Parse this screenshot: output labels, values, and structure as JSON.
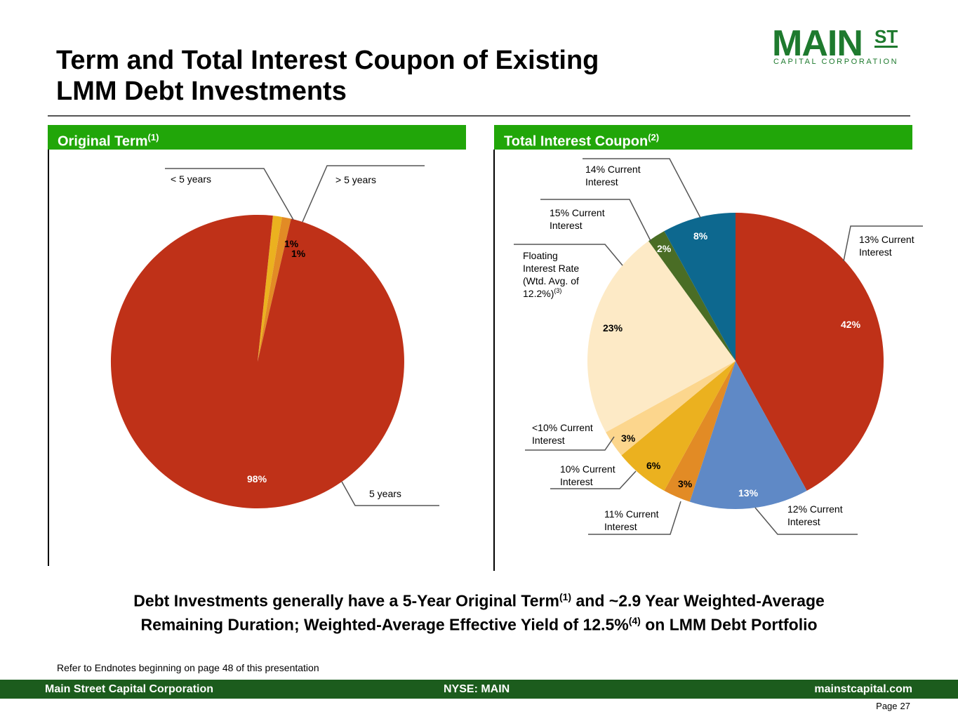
{
  "header": {
    "title_line1": "Term and Total Interest Coupon of Existing",
    "title_line2": "LMM Debt Investments"
  },
  "logo": {
    "main": "MAIN",
    "st": "ST",
    "sub": "CAPITAL CORPORATION"
  },
  "panels": {
    "left_title": "Original Term",
    "left_sup": "(1)",
    "right_title": "Total Interest Coupon",
    "right_sup": "(2)"
  },
  "colors": {
    "brand_green": "#21a609",
    "footer_green": "#1c5c1d",
    "red": "#bf3118",
    "gold": "#ebb11f",
    "orange": "#e28b25",
    "blue": "#5f89c6",
    "light_yellow": "#fcd68d",
    "cream": "#fdeac6",
    "olive": "#4a6d25",
    "teal": "#0d688f"
  },
  "chart_data": [
    {
      "type": "pie",
      "title": "Original Term",
      "slices": [
        {
          "label": "< 5 years",
          "value": 1,
          "data_label": "1%",
          "color": "#ebb11f"
        },
        {
          "label": "> 5 years",
          "value": 1,
          "data_label": "1%",
          "color": "#e28b25"
        },
        {
          "label": "5 years",
          "value": 98,
          "data_label": "98%",
          "color": "#bf3118"
        }
      ]
    },
    {
      "type": "pie",
      "title": "Total Interest Coupon",
      "slices": [
        {
          "label": "13% Current Interest",
          "value": 42,
          "data_label": "42%",
          "color": "#bf3118"
        },
        {
          "label": "12% Current Interest",
          "value": 13,
          "data_label": "13%",
          "color": "#5f89c6"
        },
        {
          "label": "11% Current Interest",
          "value": 3,
          "data_label": "3%",
          "color": "#e28b25"
        },
        {
          "label": "10% Current Interest",
          "value": 6,
          "data_label": "6%",
          "color": "#ebb11f"
        },
        {
          "label": "<10% Current Interest",
          "value": 3,
          "data_label": "3%",
          "color": "#fcd68d"
        },
        {
          "label": "Floating Interest Rate (Wtd. Avg. of 12.2%)(3)",
          "value": 23,
          "data_label": "23%",
          "color": "#fdeac6"
        },
        {
          "label": "15% Current Interest",
          "value": 2,
          "data_label": "2%",
          "color": "#4a6d25"
        },
        {
          "label": "14% Current Interest",
          "value": 8,
          "data_label": "8%",
          "color": "#0d688f"
        }
      ]
    }
  ],
  "pie1_labels": {
    "lt5_text": "< 5 years",
    "gt5_text": "> 5 years",
    "eq5_text": "5 years"
  },
  "pie2_labels": {
    "c13_l1": "13% Current",
    "c13_l2": "Interest",
    "c12_l1": "12% Current",
    "c12_l2": "Interest",
    "c11_l1": "11% Current",
    "c11_l2": "Interest",
    "c10_l1": "10% Current",
    "c10_l2": "Interest",
    "clt10_l1": "<10% Current",
    "clt10_l2": "Interest",
    "fl_l1": "Floating",
    "fl_l2": "Interest Rate",
    "fl_l3": "(Wtd. Avg. of",
    "fl_l4": "12.2%)",
    "fl_sup": "(3)",
    "c15_l1": "15% Current",
    "c15_l2": "Interest",
    "c14_l1": "14% Current",
    "c14_l2": "Interest"
  },
  "summary": {
    "line1_a": "Debt Investments generally have a 5-Year Original Term",
    "line1_sup": "(1)",
    "line1_b": " and ~2.9 Year Weighted-Average",
    "line2_a": "Remaining Duration; Weighted-Average Effective Yield of 12.5%",
    "line2_sup": "(4)",
    "line2_b": " on LMM Debt Portfolio"
  },
  "endnote": "Refer to Endnotes beginning on page 48 of this presentation",
  "footer": {
    "left": "Main Street Capital Corporation",
    "center": "NYSE: MAIN",
    "right": "mainstcapital.com"
  },
  "page": {
    "label": "Page",
    "number": "27"
  }
}
